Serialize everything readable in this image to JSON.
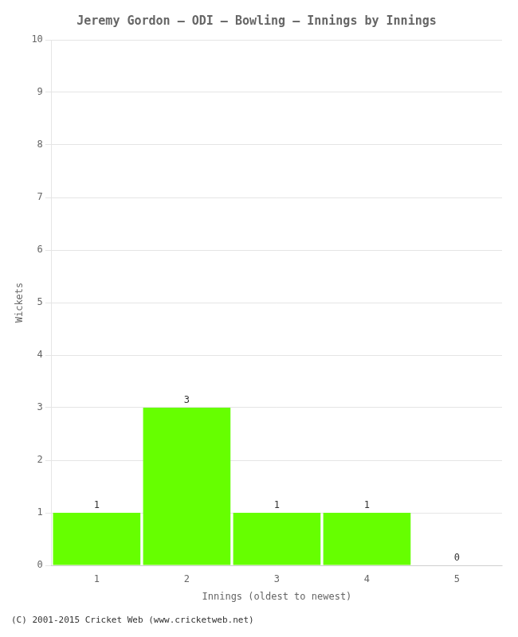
{
  "chart_data": {
    "type": "bar",
    "title": "Jeremy Gordon – ODI – Bowling – Innings by Innings",
    "x_label": "Innings (oldest to newest)",
    "y_label": "Wickets",
    "categories": [
      1,
      2,
      3,
      4,
      5
    ],
    "values": [
      1,
      3,
      1,
      1,
      0
    ],
    "color": "#66ff00",
    "ylim": [
      0,
      10
    ],
    "yticks": [
      0,
      1,
      2,
      3,
      4,
      5,
      6,
      7,
      8,
      9,
      10
    ],
    "grid": true,
    "data_labels": true,
    "annotations": [
      "(C) 2001-2015 Cricket Web (www.cricketweb.net)"
    ]
  }
}
